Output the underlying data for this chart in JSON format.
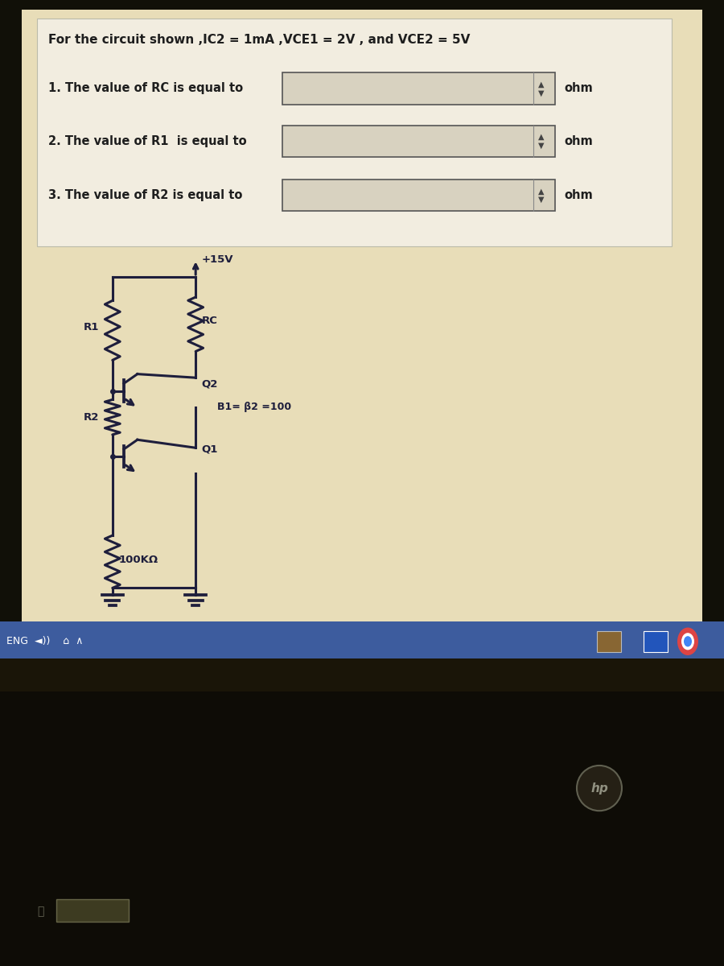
{
  "title": "For the circuit shown ,IC2 = 1mA ,VCE1 = 2V , and VCE2 = 5V",
  "q1_label": "1. The value of RC is equal to",
  "q2_label": "2. The value of R1  is equal to",
  "q3_label": "3. The value of R2 is equal to",
  "ohm": "ohm",
  "vcc": "+15V",
  "rc_label": "RC",
  "r1_label": "R1",
  "r2_label": "R2",
  "q2_label_ckt": "Q2",
  "q1_label_ckt": "Q1",
  "beta_label": "B1= β2 =100",
  "r100k_label": "100KΩ",
  "screen_bg": "#e8ddb8",
  "text_panel_bg": "#f2ede0",
  "circuit_bg": "#e0d4a0",
  "line_color": "#1e1e3c",
  "text_color": "#1e1e1e",
  "box_fill": "#d8d2c0",
  "box_edge": "#555555",
  "taskbar_color": "#3d5c9e",
  "laptop_body": "#111008",
  "laptop_bezel": "#1e1a10"
}
